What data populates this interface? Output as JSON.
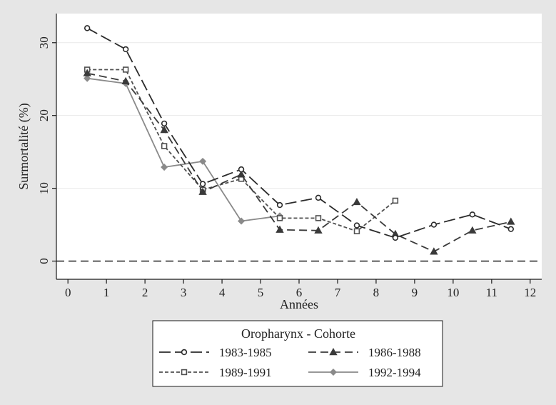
{
  "chart_data": {
    "type": "line",
    "xlabel": "Années",
    "ylabel": "Surmortalité (%)",
    "xlim": [
      -0.3,
      12.3
    ],
    "ylim": [
      -2.5,
      34
    ],
    "xticks": [
      0,
      1,
      2,
      3,
      4,
      5,
      6,
      7,
      8,
      9,
      10,
      11,
      12
    ],
    "yticks": [
      0,
      10,
      20,
      30
    ],
    "reference_line_y": 0,
    "grid": "horizontal",
    "legend": {
      "title": "Oropharynx - Cohorte",
      "placement": "bottom",
      "columns": 2
    },
    "series": [
      {
        "name": "1983-1985",
        "marker": "circle",
        "dash": "long-dash",
        "color": "#2b2b2b",
        "x": [
          0.5,
          1.5,
          2.5,
          3.5,
          4.5,
          5.5,
          6.5,
          7.5,
          8.5,
          9.5,
          10.5,
          11.5
        ],
        "y": [
          32.0,
          29.1,
          18.9,
          10.6,
          12.6,
          7.7,
          8.7,
          4.9,
          3.2,
          5.0,
          6.4,
          4.4
        ]
      },
      {
        "name": "1986-1988",
        "marker": "triangle",
        "dash": "dash",
        "color": "#3a3a3a",
        "x": [
          0.5,
          1.5,
          2.5,
          3.5,
          4.5,
          5.5,
          6.5,
          7.5,
          8.5,
          9.5,
          10.5,
          11.5
        ],
        "y": [
          25.8,
          24.7,
          18.0,
          9.5,
          11.9,
          4.3,
          4.2,
          8.1,
          3.7,
          1.3,
          4.2,
          5.4
        ]
      },
      {
        "name": "1989-1991",
        "marker": "square",
        "dash": "short-dash",
        "color": "#505050",
        "x": [
          0.5,
          1.5,
          2.5,
          3.5,
          4.5,
          5.5,
          6.5,
          7.5,
          8.5
        ],
        "y": [
          26.3,
          26.3,
          15.8,
          9.8,
          11.3,
          5.9,
          5.9,
          4.1,
          8.3
        ]
      },
      {
        "name": "1992-1994",
        "marker": "diamond",
        "dash": "solid",
        "color": "#8a8a8a",
        "x": [
          0.5,
          1.5,
          2.5,
          3.5,
          4.5,
          5.5
        ],
        "y": [
          25.1,
          24.4,
          12.9,
          13.7,
          5.5,
          6.2
        ]
      }
    ]
  }
}
